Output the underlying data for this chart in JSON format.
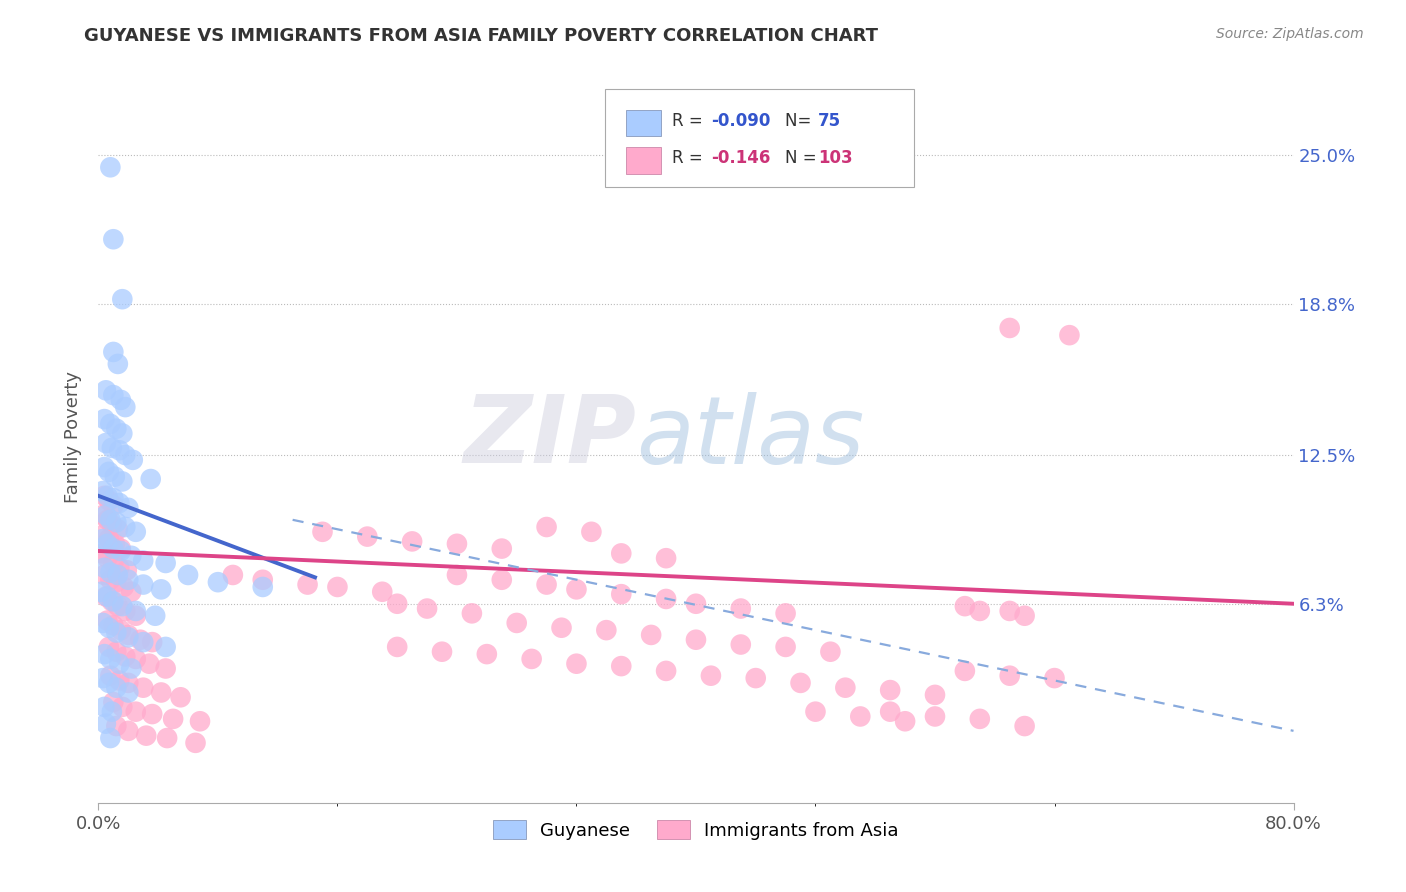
{
  "title": "GUYANESE VS IMMIGRANTS FROM ASIA FAMILY POVERTY CORRELATION CHART",
  "source": "Source: ZipAtlas.com",
  "ylabel": "Family Poverty",
  "ytick_labels": [
    "6.3%",
    "12.5%",
    "18.8%",
    "25.0%"
  ],
  "ytick_values": [
    0.063,
    0.125,
    0.188,
    0.25
  ],
  "xlim": [
    0.0,
    0.8
  ],
  "ylim": [
    -0.02,
    0.285
  ],
  "watermark_zip": "ZIP",
  "watermark_atlas": "atlas",
  "blue_color": "#aaccff",
  "pink_color": "#ffaacc",
  "blue_edge": "#7799dd",
  "pink_edge": "#dd77aa",
  "blue_scatter": [
    [
      0.008,
      0.245
    ],
    [
      0.01,
      0.215
    ],
    [
      0.016,
      0.19
    ],
    [
      0.01,
      0.168
    ],
    [
      0.013,
      0.163
    ],
    [
      0.005,
      0.152
    ],
    [
      0.01,
      0.15
    ],
    [
      0.015,
      0.148
    ],
    [
      0.018,
      0.145
    ],
    [
      0.004,
      0.14
    ],
    [
      0.008,
      0.138
    ],
    [
      0.012,
      0.136
    ],
    [
      0.016,
      0.134
    ],
    [
      0.005,
      0.13
    ],
    [
      0.009,
      0.128
    ],
    [
      0.014,
      0.127
    ],
    [
      0.018,
      0.125
    ],
    [
      0.023,
      0.123
    ],
    [
      0.004,
      0.12
    ],
    [
      0.007,
      0.118
    ],
    [
      0.011,
      0.116
    ],
    [
      0.016,
      0.114
    ],
    [
      0.003,
      0.11
    ],
    [
      0.006,
      0.108
    ],
    [
      0.01,
      0.107
    ],
    [
      0.014,
      0.105
    ],
    [
      0.02,
      0.103
    ],
    [
      0.005,
      0.1
    ],
    [
      0.008,
      0.098
    ],
    [
      0.012,
      0.097
    ],
    [
      0.018,
      0.095
    ],
    [
      0.025,
      0.093
    ],
    [
      0.035,
      0.115
    ],
    [
      0.003,
      0.09
    ],
    [
      0.006,
      0.088
    ],
    [
      0.01,
      0.086
    ],
    [
      0.015,
      0.085
    ],
    [
      0.022,
      0.083
    ],
    [
      0.03,
      0.081
    ],
    [
      0.004,
      0.078
    ],
    [
      0.008,
      0.076
    ],
    [
      0.013,
      0.075
    ],
    [
      0.02,
      0.073
    ],
    [
      0.03,
      0.071
    ],
    [
      0.042,
      0.069
    ],
    [
      0.002,
      0.068
    ],
    [
      0.006,
      0.066
    ],
    [
      0.01,
      0.064
    ],
    [
      0.016,
      0.062
    ],
    [
      0.025,
      0.06
    ],
    [
      0.038,
      0.058
    ],
    [
      0.003,
      0.055
    ],
    [
      0.007,
      0.053
    ],
    [
      0.012,
      0.051
    ],
    [
      0.02,
      0.049
    ],
    [
      0.03,
      0.047
    ],
    [
      0.045,
      0.045
    ],
    [
      0.004,
      0.042
    ],
    [
      0.008,
      0.04
    ],
    [
      0.014,
      0.038
    ],
    [
      0.022,
      0.036
    ],
    [
      0.003,
      0.032
    ],
    [
      0.007,
      0.03
    ],
    [
      0.012,
      0.028
    ],
    [
      0.02,
      0.026
    ],
    [
      0.004,
      0.02
    ],
    [
      0.009,
      0.018
    ],
    [
      0.005,
      0.013
    ],
    [
      0.008,
      0.007
    ],
    [
      0.045,
      0.08
    ],
    [
      0.06,
      0.075
    ],
    [
      0.08,
      0.072
    ],
    [
      0.11,
      0.07
    ]
  ],
  "pink_scatter": [
    [
      0.004,
      0.108
    ],
    [
      0.007,
      0.106
    ],
    [
      0.01,
      0.104
    ],
    [
      0.003,
      0.1
    ],
    [
      0.006,
      0.098
    ],
    [
      0.009,
      0.096
    ],
    [
      0.013,
      0.094
    ],
    [
      0.004,
      0.092
    ],
    [
      0.007,
      0.09
    ],
    [
      0.011,
      0.088
    ],
    [
      0.015,
      0.086
    ],
    [
      0.003,
      0.084
    ],
    [
      0.006,
      0.082
    ],
    [
      0.01,
      0.08
    ],
    [
      0.014,
      0.078
    ],
    [
      0.019,
      0.077
    ],
    [
      0.004,
      0.075
    ],
    [
      0.008,
      0.073
    ],
    [
      0.012,
      0.072
    ],
    [
      0.017,
      0.07
    ],
    [
      0.022,
      0.068
    ],
    [
      0.005,
      0.066
    ],
    [
      0.009,
      0.064
    ],
    [
      0.013,
      0.062
    ],
    [
      0.018,
      0.06
    ],
    [
      0.025,
      0.058
    ],
    [
      0.006,
      0.056
    ],
    [
      0.01,
      0.054
    ],
    [
      0.015,
      0.052
    ],
    [
      0.02,
      0.05
    ],
    [
      0.028,
      0.048
    ],
    [
      0.036,
      0.047
    ],
    [
      0.007,
      0.045
    ],
    [
      0.012,
      0.043
    ],
    [
      0.018,
      0.041
    ],
    [
      0.025,
      0.04
    ],
    [
      0.034,
      0.038
    ],
    [
      0.045,
      0.036
    ],
    [
      0.008,
      0.033
    ],
    [
      0.014,
      0.031
    ],
    [
      0.02,
      0.03
    ],
    [
      0.03,
      0.028
    ],
    [
      0.042,
      0.026
    ],
    [
      0.055,
      0.024
    ],
    [
      0.01,
      0.022
    ],
    [
      0.016,
      0.02
    ],
    [
      0.025,
      0.018
    ],
    [
      0.036,
      0.017
    ],
    [
      0.05,
      0.015
    ],
    [
      0.068,
      0.014
    ],
    [
      0.012,
      0.012
    ],
    [
      0.02,
      0.01
    ],
    [
      0.032,
      0.008
    ],
    [
      0.046,
      0.007
    ],
    [
      0.065,
      0.005
    ],
    [
      0.09,
      0.075
    ],
    [
      0.11,
      0.073
    ],
    [
      0.14,
      0.071
    ],
    [
      0.16,
      0.07
    ],
    [
      0.19,
      0.068
    ],
    [
      0.15,
      0.093
    ],
    [
      0.18,
      0.091
    ],
    [
      0.21,
      0.089
    ],
    [
      0.24,
      0.088
    ],
    [
      0.27,
      0.086
    ],
    [
      0.3,
      0.095
    ],
    [
      0.33,
      0.093
    ],
    [
      0.35,
      0.084
    ],
    [
      0.38,
      0.082
    ],
    [
      0.24,
      0.075
    ],
    [
      0.27,
      0.073
    ],
    [
      0.3,
      0.071
    ],
    [
      0.32,
      0.069
    ],
    [
      0.35,
      0.067
    ],
    [
      0.38,
      0.065
    ],
    [
      0.4,
      0.063
    ],
    [
      0.43,
      0.061
    ],
    [
      0.46,
      0.059
    ],
    [
      0.2,
      0.063
    ],
    [
      0.22,
      0.061
    ],
    [
      0.25,
      0.059
    ],
    [
      0.28,
      0.055
    ],
    [
      0.31,
      0.053
    ],
    [
      0.34,
      0.052
    ],
    [
      0.37,
      0.05
    ],
    [
      0.4,
      0.048
    ],
    [
      0.43,
      0.046
    ],
    [
      0.46,
      0.045
    ],
    [
      0.49,
      0.043
    ],
    [
      0.2,
      0.045
    ],
    [
      0.23,
      0.043
    ],
    [
      0.26,
      0.042
    ],
    [
      0.29,
      0.04
    ],
    [
      0.32,
      0.038
    ],
    [
      0.35,
      0.037
    ],
    [
      0.38,
      0.035
    ],
    [
      0.41,
      0.033
    ],
    [
      0.44,
      0.032
    ],
    [
      0.47,
      0.03
    ],
    [
      0.5,
      0.028
    ],
    [
      0.53,
      0.027
    ],
    [
      0.56,
      0.025
    ],
    [
      0.53,
      0.018
    ],
    [
      0.56,
      0.016
    ],
    [
      0.59,
      0.015
    ],
    [
      0.58,
      0.035
    ],
    [
      0.61,
      0.033
    ],
    [
      0.64,
      0.032
    ],
    [
      0.58,
      0.062
    ],
    [
      0.61,
      0.06
    ],
    [
      0.48,
      0.018
    ],
    [
      0.51,
      0.016
    ],
    [
      0.54,
      0.014
    ],
    [
      0.62,
      0.012
    ],
    [
      0.59,
      0.06
    ],
    [
      0.62,
      0.058
    ],
    [
      0.61,
      0.178
    ],
    [
      0.65,
      0.175
    ]
  ],
  "blue_line_x": [
    0.0,
    0.145
  ],
  "blue_line_y": [
    0.108,
    0.074
  ],
  "pink_line_x": [
    0.0,
    0.8
  ],
  "pink_line_y": [
    0.085,
    0.063
  ],
  "dashed_line_x": [
    0.13,
    0.8
  ],
  "dashed_line_y": [
    0.098,
    0.01
  ]
}
